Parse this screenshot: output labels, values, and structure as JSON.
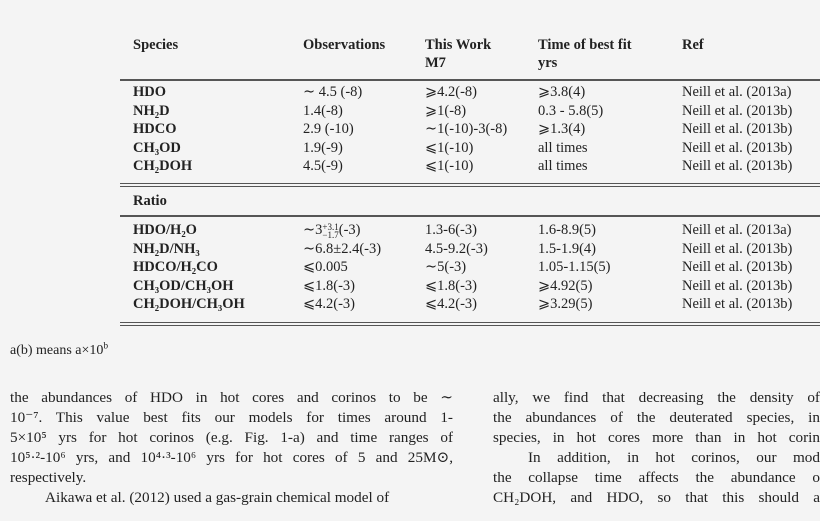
{
  "table": {
    "headers": {
      "species": "Species",
      "observations": "Observations",
      "this_work": "This Work",
      "this_work_sub": "M7",
      "time": "Time of best fit",
      "time_sub": "yrs",
      "ref": "Ref"
    },
    "abundance_rows": [
      {
        "species": "HDO",
        "obs": "∼ 4.5 (-8)",
        "model": "⩾4.2(-8)",
        "time": "⩾3.8(4)",
        "ref": "Neill et al. (2013a)"
      },
      {
        "species": "NH₂D",
        "obs": "1.4(-8)",
        "model": "⩾1(-8)",
        "time": "0.3 - 5.8(5)",
        "ref": "Neill et al. (2013b)"
      },
      {
        "species": "HDCO",
        "obs": "2.9 (-10)",
        "model": "∼1(-10)-3(-8)",
        "time": "⩾1.3(4)",
        "ref": "Neill et al. (2013b)"
      },
      {
        "species": "CH₃OD",
        "obs": "1.9(-9)",
        "model": "⩽1(-10)",
        "time": "all times",
        "ref": "Neill et al. (2013b)"
      },
      {
        "species": "CH₂DOH",
        "obs": "4.5(-9)",
        "model": "⩽1(-10)",
        "time": "all times",
        "ref": "Neill et al. (2013b)"
      }
    ],
    "ratio_label": "Ratio",
    "ratio_first": {
      "species": "HDO/H₂O",
      "obs_base": "∼3",
      "obs_sup": "+3.1",
      "obs_sub": "−1.7",
      "obs_tail": "(-3)",
      "model": "1.3-6(-3)",
      "time": "1.6-8.9(5)",
      "ref": "Neill et al. (2013a)"
    },
    "ratio_rows": [
      {
        "species": "NH₂D/NH₃",
        "obs": "∼6.8±2.4(-3)",
        "model": "4.5-9.2(-3)",
        "time": "1.5-1.9(4)",
        "ref": "Neill et al. (2013b)"
      },
      {
        "species": "HDCO/H₂CO",
        "obs": "⩽0.005",
        "model": "∼5(-3)",
        "time": "1.05-1.15(5)",
        "ref": "Neill et al. (2013b)"
      },
      {
        "species": "CH₃OD/CH₃OH",
        "obs": "⩽1.8(-3)",
        "model": "⩽1.8(-3)",
        "time": "⩾4.92(5)",
        "ref": "Neill et al. (2013b)"
      },
      {
        "species": "CH₂DOH/CH₃OH",
        "obs": "⩽4.2(-3)",
        "model": "⩽4.2(-3)",
        "time": "⩾3.29(5)",
        "ref": "Neill et al. (2013b)"
      }
    ],
    "footnote": "a(b) means a×10",
    "footnote_sup": "b"
  },
  "left_column": [
    "the abundances of HDO in hot cores and corinos to be ∼",
    "10⁻⁷. This value best fits our models for times around 1-",
    "5×10⁵ yrs for hot corinos (e.g. Fig. 1-a) and time ranges of",
    "10⁵·²-10⁶ yrs, and 10⁴·³-10⁶ yrs for hot cores of 5 and 25M⊙,",
    "respectively.",
    "Aikawa et al. (2012) used a gas-grain chemical model of"
  ],
  "right_column": [
    "ally, we find that decreasing the density of",
    "the abundances of the deuterated species, in",
    "species, in hot cores more than in hot corin",
    "In addition, in hot corinos, our mod",
    "the collapse time affects the abundance o",
    "CH₂DOH, and HDO, so that this should a"
  ]
}
